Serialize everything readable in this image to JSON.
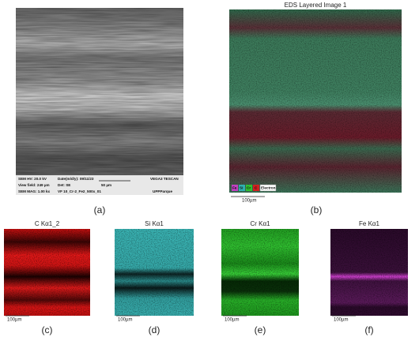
{
  "panels": [
    {
      "caption": "(a)"
    },
    {
      "caption": "(b)",
      "title": "EDS Layered Image 1",
      "scale": "100µm",
      "legend": [
        "Fe",
        "Si",
        "Cr",
        "C",
        "Electron"
      ]
    },
    {
      "caption": "(c)",
      "title": "C Kα1_2",
      "scale": "100µm"
    },
    {
      "caption": "(d)",
      "title": "Si Kα1",
      "scale": "100µm"
    },
    {
      "caption": "(e)",
      "title": "Cr Kα1",
      "scale": "100µm"
    },
    {
      "caption": "(f)",
      "title": "Fe Kα1",
      "scale": "100µm"
    }
  ],
  "sem_info": {
    "hv": "SEM HV: 20.0 kV",
    "date": "Date(m/d/y): 09/11/23",
    "brand": "VEGA3 TESCAN",
    "view": "View field: 249 µm",
    "det": "Det: SE",
    "bar": "50 µm",
    "mag": "SEM MAG: 1.00 kx",
    "file": "VF 10_Cr-2_Fe2_500x_01",
    "lab": "UPPParque"
  }
}
